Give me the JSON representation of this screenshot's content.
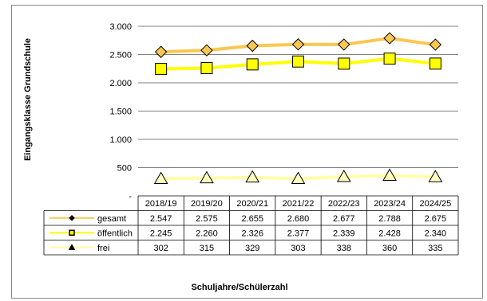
{
  "chart_data": {
    "type": "line",
    "xlabel": "Schuljahre/Schülerzahl",
    "ylabel": "Eingangsklasse  Grundschule",
    "ylim": [
      0,
      3000
    ],
    "yticks": [
      0,
      500,
      1000,
      1500,
      2000,
      2500,
      3000
    ],
    "ytick_labels": [
      "-",
      "500",
      "1.000",
      "1.500",
      "2.000",
      "2.500",
      "3.000"
    ],
    "categories": [
      "2018/19",
      "2019/20",
      "2020/21",
      "2021/22",
      "2022/23",
      "2023/24",
      "2024/25"
    ],
    "legend_position": "data-table",
    "grid": true,
    "series": [
      {
        "name": "gesamt",
        "values": [
          2547,
          2575,
          2655,
          2680,
          2677,
          2788,
          2675
        ],
        "display": [
          "2.547",
          "2.575",
          "2.655",
          "2.680",
          "2.677",
          "2.788",
          "2.675"
        ],
        "color": "#F9C752",
        "marker": "diamond",
        "marker_fill": "#F9C752"
      },
      {
        "name": "öffentlich",
        "values": [
          2245,
          2260,
          2326,
          2377,
          2339,
          2428,
          2340
        ],
        "display": [
          "2.245",
          "2.260",
          "2.326",
          "2.377",
          "2.339",
          "2.428",
          "2.340"
        ],
        "color": "#FFFF00",
        "marker": "square",
        "marker_fill": "#FFFF00"
      },
      {
        "name": "frei",
        "values": [
          302,
          315,
          329,
          303,
          338,
          360,
          335
        ],
        "display": [
          "302",
          "315",
          "329",
          "303",
          "338",
          "360",
          "335"
        ],
        "color": "#FFFFA8",
        "marker": "triangle",
        "marker_fill": "#FFFFC0"
      }
    ]
  }
}
